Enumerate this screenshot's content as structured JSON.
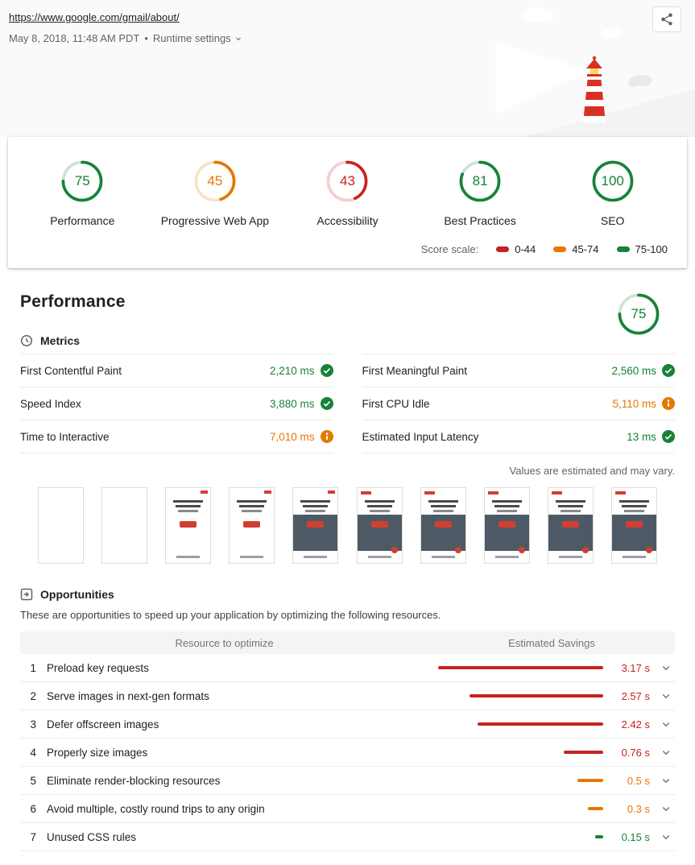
{
  "colors": {
    "pass": "#178239",
    "average": "#e67700",
    "fail": "#c7221f"
  },
  "header": {
    "url": "https://www.google.com/gmail/about/",
    "timestamp": "May 8, 2018, 11:48 AM PDT",
    "separator": "•",
    "runtime_settings_label": "Runtime settings"
  },
  "scores": {
    "items": [
      {
        "label": "Performance",
        "value": 75,
        "color": "#178239"
      },
      {
        "label": "Progressive Web App",
        "value": 45,
        "color": "#e67700"
      },
      {
        "label": "Accessibility",
        "value": 43,
        "color": "#c7221f"
      },
      {
        "label": "Best Practices",
        "value": 81,
        "color": "#178239"
      },
      {
        "label": "SEO",
        "value": 100,
        "color": "#178239"
      }
    ],
    "scale": {
      "label": "Score scale:",
      "ranges": [
        {
          "label": "0-44",
          "color": "#c7221f"
        },
        {
          "label": "45-74",
          "color": "#e67700"
        },
        {
          "label": "75-100",
          "color": "#178239"
        }
      ]
    }
  },
  "performance": {
    "title": "Performance",
    "gauge": {
      "value": 75,
      "color": "#178239"
    },
    "metrics_label": "Metrics",
    "metrics_left": [
      {
        "label": "First Contentful Paint",
        "value": "2,210 ms",
        "status": "pass"
      },
      {
        "label": "Speed Index",
        "value": "3,880 ms",
        "status": "pass"
      },
      {
        "label": "Time to Interactive",
        "value": "7,010 ms",
        "status": "average"
      }
    ],
    "metrics_right": [
      {
        "label": "First Meaningful Paint",
        "value": "2,560 ms",
        "status": "pass"
      },
      {
        "label": "First CPU Idle",
        "value": "5,110 ms",
        "status": "average"
      },
      {
        "label": "Estimated Input Latency",
        "value": "13 ms",
        "status": "pass"
      }
    ],
    "disclaimer": "Values are estimated and may vary.",
    "filmstrip_stages": [
      0,
      0,
      1,
      1,
      2,
      3,
      3,
      3,
      3,
      3
    ]
  },
  "opportunities": {
    "title": "Opportunities",
    "description": "These are opportunities to speed up your application by optimizing the following resources.",
    "columns": [
      "Resource to optimize",
      "Estimated Savings"
    ],
    "rows": [
      {
        "index": "1",
        "label": "Preload key requests",
        "savings": "3.17 s",
        "seconds": 3.17,
        "severity": "fail"
      },
      {
        "index": "2",
        "label": "Serve images in next-gen formats",
        "savings": "2.57 s",
        "seconds": 2.57,
        "severity": "fail"
      },
      {
        "index": "3",
        "label": "Defer offscreen images",
        "savings": "2.42 s",
        "seconds": 2.42,
        "severity": "fail"
      },
      {
        "index": "4",
        "label": "Properly size images",
        "savings": "0.76 s",
        "seconds": 0.76,
        "severity": "fail"
      },
      {
        "index": "5",
        "label": "Eliminate render-blocking resources",
        "savings": "0.5 s",
        "seconds": 0.5,
        "severity": "average"
      },
      {
        "index": "6",
        "label": "Avoid multiple, costly round trips to any origin",
        "savings": "0.3 s",
        "seconds": 0.3,
        "severity": "average"
      },
      {
        "index": "7",
        "label": "Unused CSS rules",
        "savings": "0.15 s",
        "seconds": 0.15,
        "severity": "pass"
      }
    ]
  }
}
